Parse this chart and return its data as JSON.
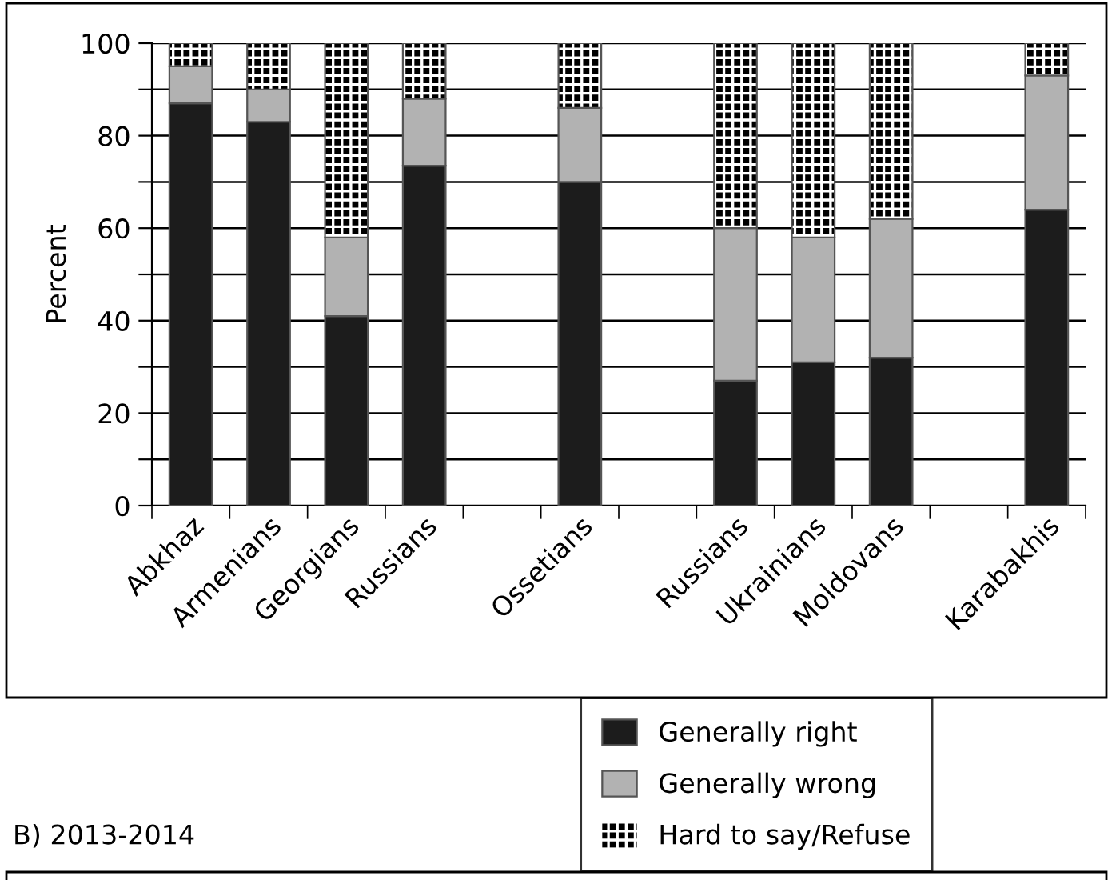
{
  "chart_data": {
    "type": "bar",
    "stacked": true,
    "ylabel": "Percent",
    "categories": [
      "Abkhaz",
      "Armenians",
      "Georgians",
      "Russians",
      null,
      "Ossetians",
      null,
      "Russians",
      "Ukrainians",
      "Moldovans",
      null,
      "Karabakhis"
    ],
    "series": [
      {
        "name": "Generally right",
        "color": "#1c1c1c",
        "values": [
          87,
          83,
          41,
          73.5,
          null,
          70,
          null,
          27,
          31,
          32,
          null,
          64
        ]
      },
      {
        "name": "Generally wrong",
        "color": "#b2b2b2",
        "values": [
          8,
          7,
          17,
          14.5,
          null,
          16,
          null,
          33,
          27,
          30,
          null,
          29
        ]
      },
      {
        "name": "Hard to say/Refuse",
        "color": "#000000",
        "values": [
          5,
          10,
          42,
          12,
          null,
          14,
          null,
          40,
          42,
          38,
          null,
          7
        ]
      }
    ],
    "ylim": [
      0,
      100
    ],
    "yticks": [
      0,
      {
        "value": 10,
        "label": null
      },
      20,
      {
        "value": 30,
        "label": null
      },
      40,
      {
        "value": 50,
        "label": null
      },
      60,
      {
        "value": 70,
        "label": null
      },
      80,
      {
        "value": 90,
        "label": null
      },
      100
    ],
    "grid": "y",
    "legend": "bottom",
    "annotations": [
      "B) 2013-2014"
    ]
  }
}
